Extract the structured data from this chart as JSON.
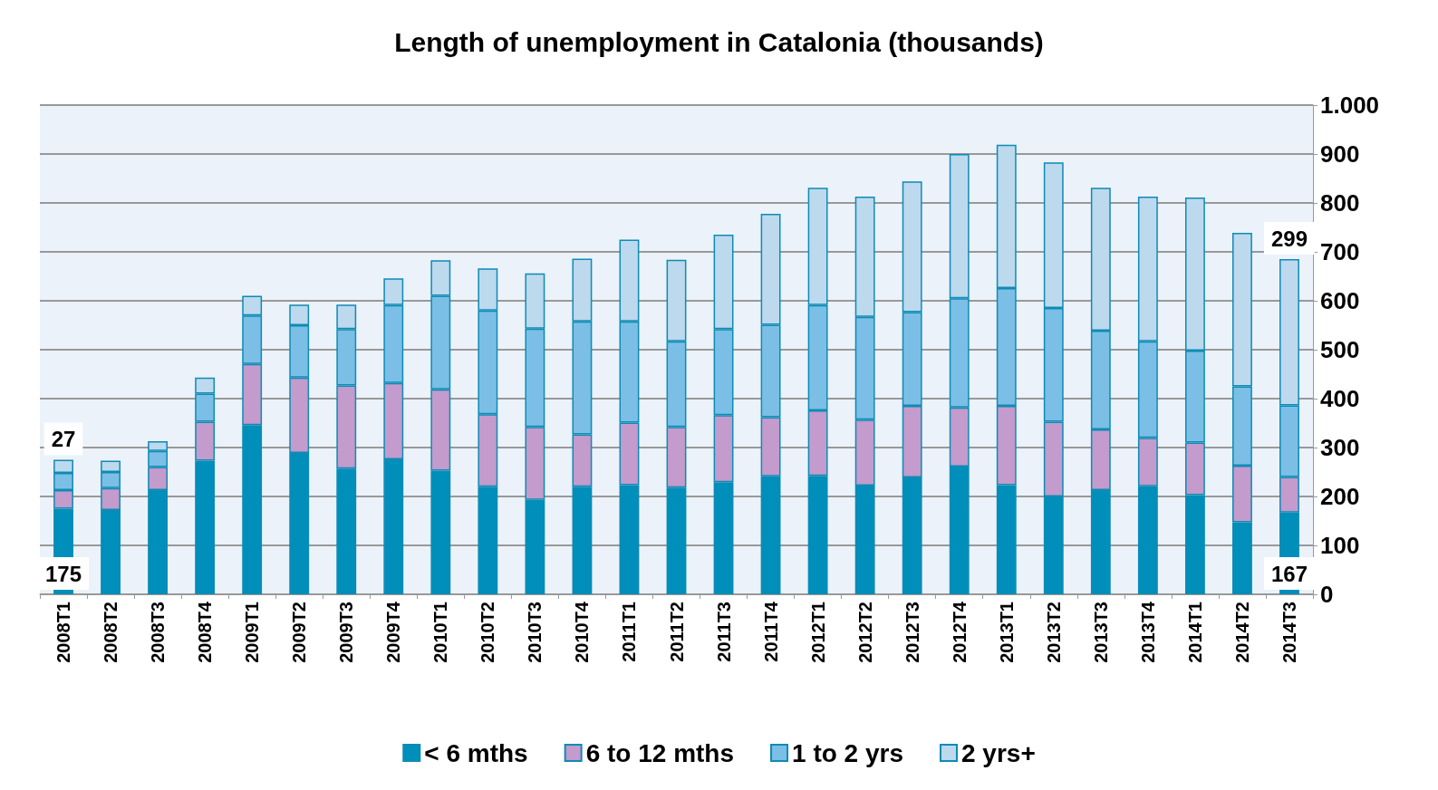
{
  "chart_data": {
    "type": "bar",
    "title": "Length of unemployment in Catalonia (thousands)",
    "stacked": true,
    "categories": [
      "2008T1",
      "2008T2",
      "2008T3",
      "2008T4",
      "2009T1",
      "2009T2",
      "2009T3",
      "2009T4",
      "2010T1",
      "2010T2",
      "2010T3",
      "2010T4",
      "2011T1",
      "2011T2",
      "2011T3",
      "2011T4",
      "2012T1",
      "2012T2",
      "2012T3",
      "2012T4",
      "2013T1",
      "2013T2",
      "2013T3",
      "2013T4",
      "2014T1",
      "2014T2",
      "2014T3"
    ],
    "series": [
      {
        "name": "< 6 mths",
        "color": "#008fbb",
        "values": [
          175,
          172,
          213,
          273,
          346,
          289,
          257,
          276,
          253,
          220,
          193,
          220,
          223,
          218,
          229,
          241,
          242,
          222,
          239,
          261,
          223,
          200,
          213,
          221,
          203,
          147,
          167
        ],
        "value_labels": [
          "175",
          null,
          null,
          null,
          null,
          null,
          null,
          null,
          null,
          null,
          null,
          null,
          null,
          null,
          null,
          null,
          null,
          null,
          null,
          null,
          null,
          null,
          null,
          null,
          null,
          null,
          "167"
        ]
      },
      {
        "name": "6 to 12 mths",
        "color": "#c39bcc",
        "values": [
          38,
          45,
          47,
          80,
          125,
          154,
          170,
          156,
          166,
          148,
          149,
          107,
          128,
          124,
          137,
          121,
          134,
          135,
          146,
          121,
          162,
          153,
          124,
          99,
          107,
          116,
          73
        ]
      },
      {
        "name": "1 to 2 yrs",
        "color": "#7bbfe6",
        "values": [
          35,
          33,
          33,
          57,
          99,
          107,
          115,
          159,
          191,
          212,
          201,
          231,
          207,
          175,
          176,
          189,
          215,
          210,
          192,
          223,
          241,
          232,
          202,
          197,
          188,
          162,
          146
        ]
      },
      {
        "name": "2 yrs+",
        "color": "#bcd9ee",
        "values": [
          27,
          23,
          20,
          33,
          40,
          42,
          50,
          55,
          73,
          86,
          113,
          128,
          167,
          167,
          193,
          227,
          240,
          246,
          267,
          295,
          293,
          298,
          292,
          296,
          313,
          314,
          299
        ],
        "value_labels": [
          "27",
          null,
          null,
          null,
          null,
          null,
          null,
          null,
          null,
          null,
          null,
          null,
          null,
          null,
          null,
          null,
          null,
          null,
          null,
          null,
          null,
          null,
          null,
          null,
          null,
          null,
          "299"
        ]
      }
    ],
    "ylim": [
      0,
      1000
    ],
    "yticks": [
      0,
      100,
      200,
      300,
      400,
      500,
      600,
      700,
      800,
      900,
      {
        "value": 1000,
        "label": "1.000"
      }
    ],
    "grid": "y",
    "legend": "bottom"
  }
}
